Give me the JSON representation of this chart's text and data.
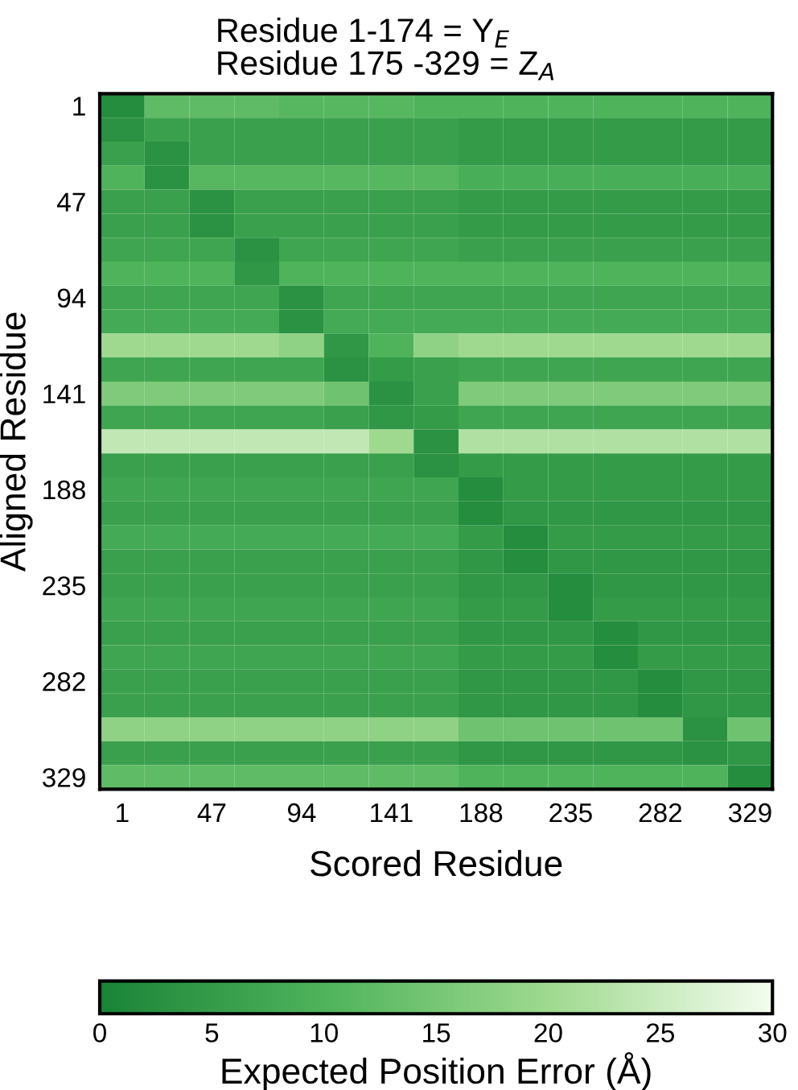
{
  "chart_data": {
    "type": "heatmap",
    "title": "Residue 1-174 = Y$_{E}$",
    "subtitle": "Residue 175 -329 = Z$_{A}$",
    "xlabel": "Scored Residue",
    "ylabel": "Aligned Residue",
    "clabel": "Expected Position Error (Å)",
    "categories": [
      "1",
      null,
      "47",
      null,
      "94",
      null,
      "141",
      null,
      "188",
      null,
      "235",
      null,
      "282",
      null,
      "329"
    ],
    "y_categories": [
      "1",
      null,
      null,
      null,
      "47",
      null,
      null,
      null,
      "94",
      null,
      null,
      null,
      "141",
      null,
      null,
      null,
      "188",
      null,
      null,
      null,
      "235",
      null,
      null,
      null,
      "282",
      null,
      null,
      null,
      "329"
    ],
    "clim": [
      0,
      30
    ],
    "cticks": [
      0,
      5,
      10,
      15,
      20,
      25,
      30
    ],
    "cells": [
      [
        2,
        12,
        12,
        12,
        11,
        11,
        11,
        10,
        10,
        10,
        10,
        10,
        10,
        10,
        10
      ],
      [
        3,
        6,
        6,
        6,
        6,
        6,
        6,
        6,
        5,
        5,
        5,
        5,
        5,
        5,
        5
      ],
      [
        6,
        3,
        6,
        6,
        6,
        6,
        6,
        6,
        5,
        5,
        5,
        5,
        5,
        5,
        5
      ],
      [
        10,
        3,
        11,
        11,
        11,
        11,
        11,
        11,
        9,
        9,
        9,
        9,
        9,
        9,
        9
      ],
      [
        6,
        6,
        3,
        6,
        6,
        6,
        6,
        6,
        5,
        5,
        5,
        5,
        5,
        5,
        5
      ],
      [
        6,
        6,
        3,
        6,
        6,
        6,
        6,
        6,
        5,
        5,
        5,
        5,
        5,
        5,
        5
      ],
      [
        7,
        7,
        7,
        3,
        7,
        7,
        7,
        7,
        6,
        6,
        6,
        6,
        6,
        6,
        6
      ],
      [
        10,
        10,
        10,
        4,
        10,
        10,
        10,
        10,
        10,
        10,
        10,
        10,
        10,
        10,
        10
      ],
      [
        7,
        7,
        7,
        7,
        3,
        7,
        7,
        7,
        7,
        7,
        7,
        7,
        7,
        7,
        7
      ],
      [
        8,
        8,
        8,
        8,
        3,
        8,
        8,
        8,
        8,
        8,
        8,
        8,
        8,
        8,
        8
      ],
      [
        20,
        20,
        20,
        20,
        18,
        4,
        10,
        18,
        20,
        20,
        20,
        20,
        20,
        20,
        20
      ],
      [
        7,
        7,
        7,
        7,
        7,
        3,
        5,
        6,
        7,
        7,
        7,
        7,
        7,
        7,
        7
      ],
      [
        16,
        16,
        16,
        16,
        16,
        14,
        3,
        6,
        16,
        16,
        16,
        16,
        16,
        16,
        16
      ],
      [
        7,
        7,
        7,
        7,
        7,
        6,
        4,
        5,
        7,
        7,
        7,
        7,
        7,
        7,
        7
      ],
      [
        24,
        24,
        24,
        24,
        24,
        24,
        20,
        3,
        22,
        22,
        22,
        22,
        22,
        22,
        22
      ],
      [
        6,
        6,
        6,
        6,
        6,
        6,
        6,
        3,
        5,
        5,
        5,
        5,
        5,
        5,
        5
      ],
      [
        7,
        7,
        7,
        7,
        7,
        7,
        7,
        7,
        2,
        5,
        5,
        5,
        5,
        5,
        5
      ],
      [
        6,
        6,
        6,
        6,
        6,
        6,
        6,
        6,
        2,
        4,
        4,
        4,
        4,
        4,
        4
      ],
      [
        8,
        8,
        8,
        8,
        8,
        8,
        8,
        8,
        5,
        2,
        5,
        5,
        5,
        5,
        5
      ],
      [
        6,
        6,
        6,
        6,
        6,
        6,
        6,
        6,
        4,
        2,
        4,
        4,
        4,
        4,
        4
      ],
      [
        6,
        6,
        6,
        6,
        6,
        6,
        6,
        6,
        4,
        4,
        2,
        4,
        4,
        4,
        4
      ],
      [
        7,
        7,
        7,
        7,
        7,
        7,
        7,
        7,
        5,
        5,
        2,
        5,
        5,
        5,
        5
      ],
      [
        6,
        6,
        6,
        6,
        6,
        6,
        6,
        6,
        4,
        4,
        4,
        2,
        4,
        4,
        4
      ],
      [
        7,
        7,
        7,
        7,
        7,
        7,
        7,
        7,
        5,
        5,
        5,
        2,
        5,
        5,
        5
      ],
      [
        6,
        6,
        6,
        6,
        6,
        6,
        6,
        6,
        4,
        4,
        4,
        4,
        2,
        4,
        4
      ],
      [
        6,
        6,
        6,
        6,
        6,
        6,
        6,
        6,
        4,
        4,
        4,
        4,
        2,
        4,
        4
      ],
      [
        18,
        18,
        18,
        18,
        18,
        18,
        18,
        18,
        14,
        14,
        14,
        14,
        14,
        3,
        14
      ],
      [
        6,
        6,
        6,
        6,
        6,
        6,
        6,
        6,
        4,
        4,
        4,
        4,
        4,
        3,
        4
      ],
      [
        12,
        12,
        12,
        12,
        12,
        12,
        12,
        12,
        10,
        10,
        10,
        10,
        10,
        10,
        2
      ]
    ]
  }
}
